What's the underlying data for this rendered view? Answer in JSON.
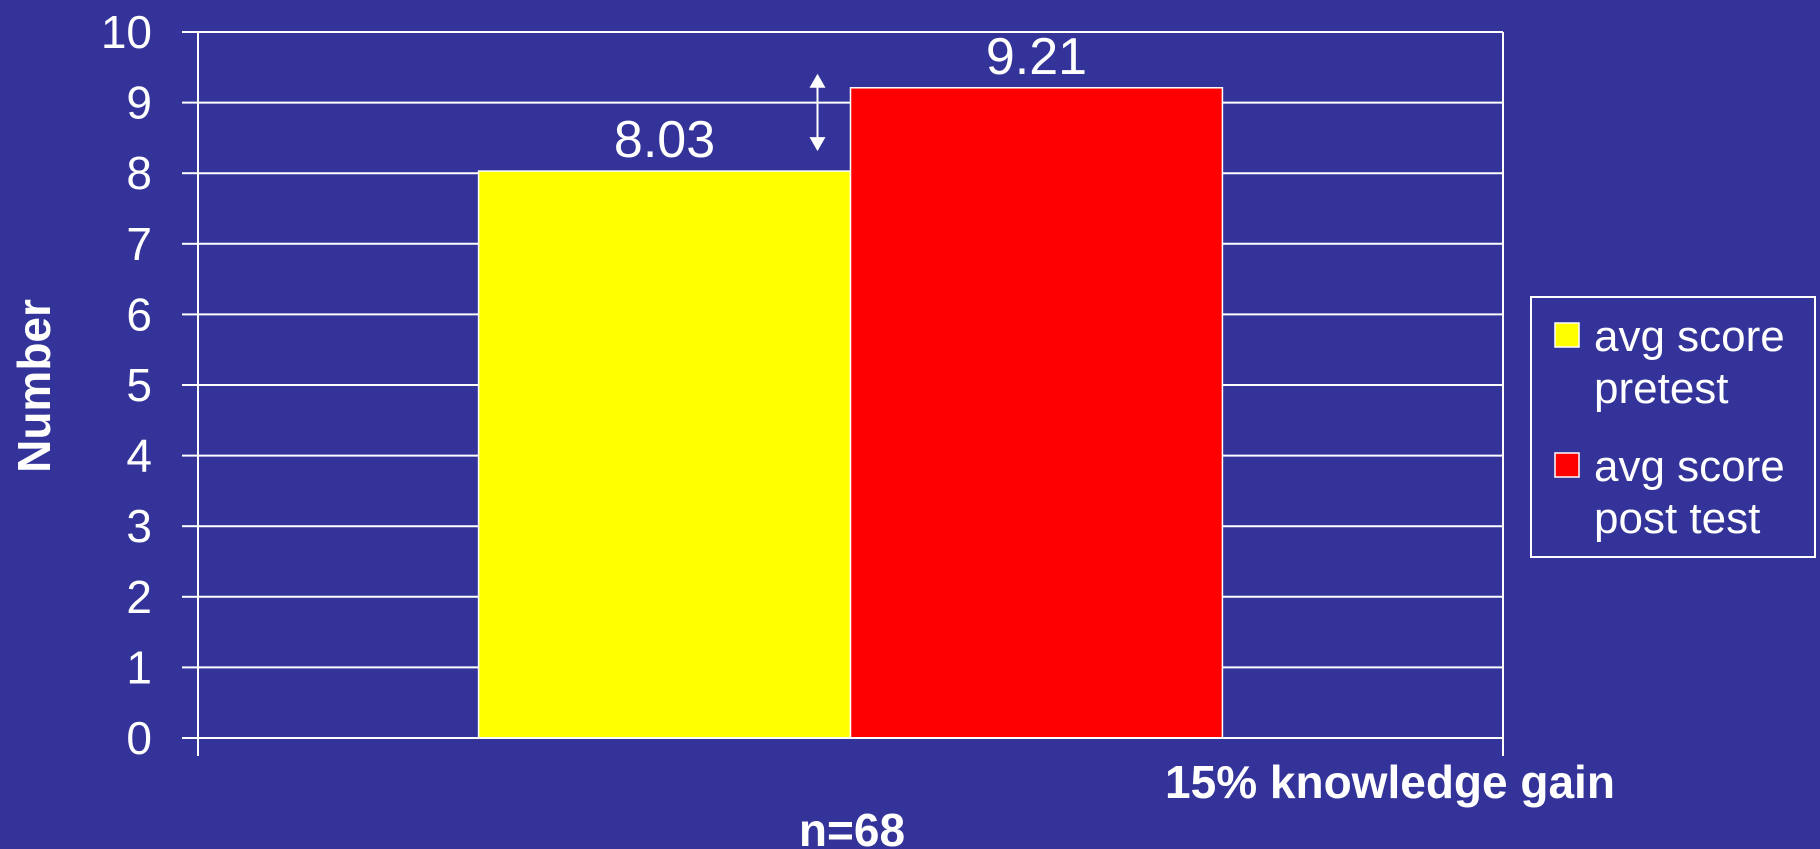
{
  "chart_data": {
    "type": "bar",
    "categories": [
      ""
    ],
    "series": [
      {
        "name": "avg score pretest",
        "legend_lines": [
          "avg score",
          "pretest"
        ],
        "values": [
          8.03
        ],
        "color": "#ffff00"
      },
      {
        "name": "avg score post test",
        "legend_lines": [
          "avg score",
          "post test"
        ],
        "values": [
          9.21
        ],
        "color": "#ff0000"
      }
    ],
    "data_labels": [
      "8.03",
      "9.21"
    ],
    "ylabel": "Number",
    "xlabel": "n=68",
    "annotation": "15% knowledge gain",
    "ylim": [
      0,
      10
    ],
    "yticks": [
      0,
      1,
      2,
      3,
      4,
      5,
      6,
      7,
      8,
      9,
      10
    ],
    "grid": true,
    "legend_position": "right",
    "colors": {
      "background": "#333399",
      "grid": "#ffffff",
      "text": "#ffffff"
    }
  }
}
